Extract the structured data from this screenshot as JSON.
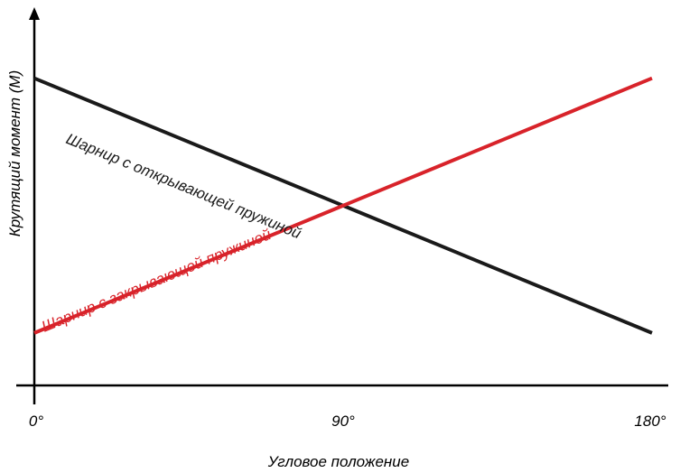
{
  "chart_data": {
    "type": "line",
    "title": "",
    "xlabel": "Угловое положение",
    "ylabel": "Крутящий момент (M)",
    "x_ticks": [
      "0°",
      "90°",
      "180°"
    ],
    "xlim": [
      0,
      180
    ],
    "ylim": [
      0,
      1
    ],
    "grid": false,
    "legend": "none",
    "series": [
      {
        "name": "Шарнир с открывающей пружиной",
        "color": "#1a1a1a",
        "x": [
          0,
          180
        ],
        "y": [
          0.82,
          0.14
        ]
      },
      {
        "name": "Шарнир с закрывающей пружиной",
        "color": "#d8232a",
        "x": [
          0,
          180
        ],
        "y": [
          0.14,
          0.82
        ]
      }
    ]
  }
}
